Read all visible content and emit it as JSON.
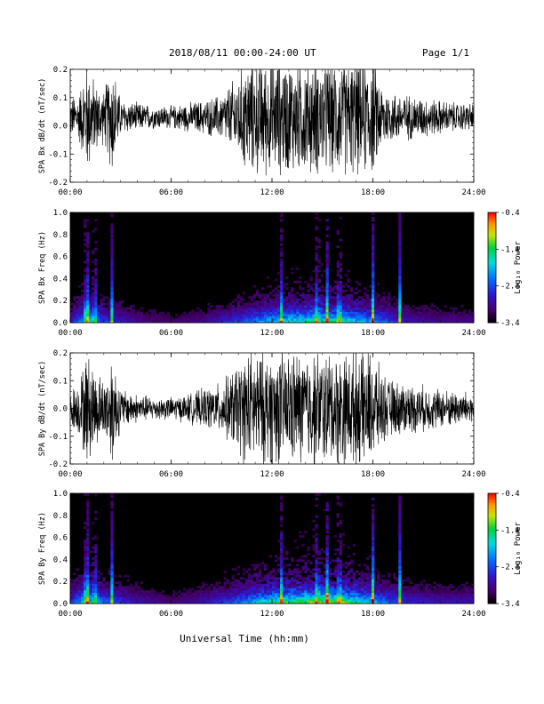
{
  "header": {
    "title": "2018/08/11  00:00-24:00 UT",
    "page": "Page 1/1"
  },
  "chart_data": [
    {
      "type": "line",
      "ylabel": "SPA Bx dB/dt (nT/sec)",
      "ylim": [
        -0.2,
        0.2
      ],
      "yticks": [
        "0.2",
        "0.1",
        "0.0",
        "-0.1",
        "-0.2"
      ],
      "xlim": [
        0,
        24
      ],
      "xticks": [
        "00:00",
        "06:00",
        "12:00",
        "18:00",
        "24:00"
      ],
      "envelope": {
        "hours": [
          0,
          0.5,
          1.0,
          1.5,
          2.0,
          2.5,
          3,
          4,
          5,
          6,
          7,
          8,
          9,
          10,
          10.5,
          11,
          12,
          13,
          14,
          15,
          16,
          17,
          17.5,
          18,
          18.5,
          19,
          20,
          21,
          22,
          23,
          24
        ],
        "amplitude": [
          0.07,
          0.08,
          0.2,
          0.12,
          0.09,
          0.2,
          0.06,
          0.05,
          0.04,
          0.04,
          0.05,
          0.06,
          0.08,
          0.15,
          0.2,
          0.2,
          0.2,
          0.2,
          0.2,
          0.2,
          0.2,
          0.2,
          0.2,
          0.2,
          0.12,
          0.09,
          0.08,
          0.07,
          0.06,
          0.05,
          0.05
        ],
        "offset": 0.03
      }
    },
    {
      "type": "heatmap",
      "ylabel": "SPA Bx Freq (Hz)",
      "ylim": [
        0.0,
        1.0
      ],
      "yticks": [
        "1.0",
        "0.8",
        "0.6",
        "0.4",
        "0.2",
        "0.0"
      ],
      "xlim": [
        0,
        24
      ],
      "xticks": [
        "00:00",
        "06:00",
        "12:00",
        "18:00",
        "24:00"
      ],
      "colorbar": {
        "label": "Log₁₀ Power",
        "ticks": [
          "-0.4",
          "-1.4",
          "-2.4",
          "-3.4"
        ],
        "range": [
          -3.4,
          -0.4
        ]
      },
      "activity": {
        "hours": [
          0,
          1,
          2,
          4,
          6,
          8,
          10,
          12,
          14,
          16,
          18,
          20,
          22,
          24
        ],
        "level": [
          0.2,
          0.5,
          0.3,
          0.15,
          0.1,
          0.15,
          0.3,
          0.45,
          0.55,
          0.55,
          0.4,
          0.2,
          0.15,
          0.15
        ]
      },
      "bright_columns_hours": [
        0.95,
        1.0,
        1.45,
        2.5,
        12.6,
        14.7,
        15.3,
        16.0,
        18.0,
        19.6
      ]
    },
    {
      "type": "line",
      "ylabel": "SPA By dB/dt (nT/sec)",
      "ylim": [
        -0.2,
        0.2
      ],
      "yticks": [
        "0.2",
        "0.1",
        "0.0",
        "-0.1",
        "-0.2"
      ],
      "xlim": [
        0,
        24
      ],
      "xticks": [
        "00:00",
        "06:00",
        "12:00",
        "18:00",
        "24:00"
      ],
      "envelope": {
        "hours": [
          0,
          0.5,
          1.0,
          1.5,
          2.0,
          2.5,
          3,
          4,
          5,
          6,
          7,
          8,
          9,
          10,
          10.5,
          11,
          12,
          13,
          14,
          15,
          16,
          17,
          17.5,
          18,
          18.5,
          19,
          20,
          21,
          22,
          23,
          24
        ],
        "amplitude": [
          0.07,
          0.09,
          0.2,
          0.14,
          0.1,
          0.2,
          0.07,
          0.05,
          0.04,
          0.04,
          0.05,
          0.07,
          0.09,
          0.16,
          0.2,
          0.2,
          0.2,
          0.2,
          0.2,
          0.2,
          0.2,
          0.2,
          0.2,
          0.2,
          0.13,
          0.1,
          0.09,
          0.08,
          0.07,
          0.06,
          0.06
        ],
        "offset": 0.0
      }
    },
    {
      "type": "heatmap",
      "ylabel": "SPA By Freq (Hz)",
      "ylim": [
        0.0,
        1.0
      ],
      "yticks": [
        "1.0",
        "0.8",
        "0.6",
        "0.4",
        "0.2",
        "0.0"
      ],
      "xlim": [
        0,
        24
      ],
      "xticks": [
        "00:00",
        "06:00",
        "12:00",
        "18:00",
        "24:00"
      ],
      "colorbar": {
        "label": "Log₁₀ Power",
        "ticks": [
          "-0.4",
          "-1.4",
          "-2.4",
          "-3.4"
        ],
        "range": [
          -3.4,
          -0.4
        ]
      },
      "activity": {
        "hours": [
          0,
          1,
          2,
          4,
          6,
          8,
          10,
          12,
          14,
          16,
          18,
          20,
          22,
          24
        ],
        "level": [
          0.25,
          0.55,
          0.35,
          0.2,
          0.12,
          0.2,
          0.35,
          0.55,
          0.65,
          0.65,
          0.45,
          0.25,
          0.2,
          0.2
        ]
      },
      "bright_columns_hours": [
        0.95,
        1.0,
        1.45,
        2.5,
        12.6,
        14.7,
        15.3,
        16.0,
        18.0,
        19.6
      ]
    }
  ],
  "xlabel": "Universal Time (hh:mm)"
}
